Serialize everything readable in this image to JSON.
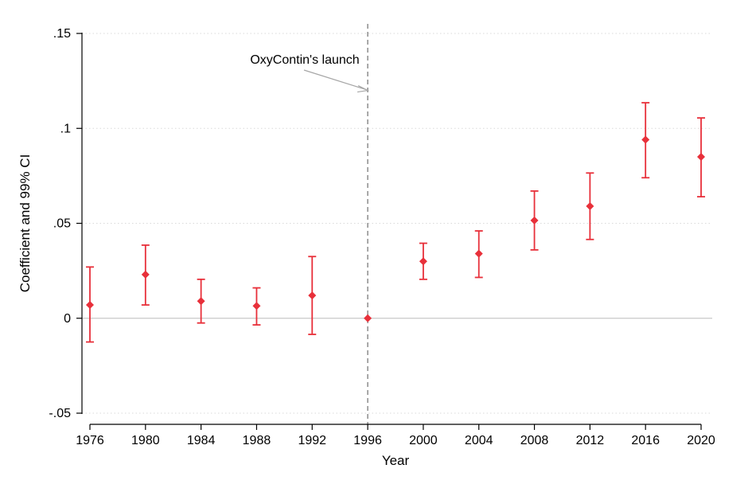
{
  "chart_data": {
    "type": "scatter",
    "subtype": "coefficient-plot-with-error-bars",
    "xlabel": "Year",
    "ylabel": "Coefficient and 99% CI",
    "x": [
      1976,
      1980,
      1984,
      1988,
      1992,
      1996,
      2000,
      2004,
      2008,
      2012,
      2016,
      2020
    ],
    "xtick_labels": [
      "1976",
      "1980",
      "1984",
      "1988",
      "1992",
      "1996",
      "2000",
      "2004",
      "2008",
      "2012",
      "2016",
      "2020"
    ],
    "ylim": [
      -0.05,
      0.15
    ],
    "yticks": [
      -0.05,
      0,
      0.05,
      0.1,
      0.15
    ],
    "ytick_labels": [
      "-.05",
      "0",
      ".05",
      ".1",
      ".15"
    ],
    "grid": "horizontal dotted",
    "series": [
      {
        "name": "Coefficient and 99% CI",
        "coef": [
          0.007,
          0.023,
          0.009,
          0.0065,
          0.012,
          0.0,
          0.03,
          0.034,
          0.0515,
          0.059,
          0.094,
          0.085
        ],
        "lower": [
          -0.0125,
          0.007,
          -0.0025,
          -0.0035,
          -0.0085,
          0.0,
          0.0205,
          0.0215,
          0.036,
          0.0415,
          0.074,
          0.064
        ],
        "upper": [
          0.027,
          0.0385,
          0.0205,
          0.016,
          0.0325,
          0.0,
          0.0395,
          0.046,
          0.067,
          0.0765,
          0.1135,
          0.1055
        ]
      }
    ],
    "reference_line": {
      "axis": "x",
      "value": 1996,
      "style": "dashed"
    },
    "annotation": {
      "text": "OxyContin's launch",
      "arrow_to": [
        1996,
        0.12
      ]
    },
    "colors": {
      "marker": "#e8303a",
      "reference_line": "#8c8c8c",
      "zero_line": "#c9c9c9",
      "grid": "#d9d9d9",
      "axis": "#000000"
    }
  }
}
